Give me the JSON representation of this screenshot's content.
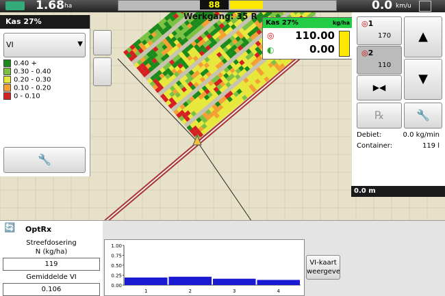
{
  "top_bar": {
    "area": "1.68",
    "area_unit": "ha",
    "center_value": "88",
    "speed": "0.0",
    "speed_unit": "km/u"
  },
  "map": {
    "pass_label": "Werkgang: 35 R",
    "distance": "0.0 m"
  },
  "left_panel": {
    "title": "Kas 27%",
    "dropdown": "VI",
    "legend": [
      "0.40 +",
      "0.30 - 0.40",
      "0.20 - 0.30",
      "0.10 - 0.20",
      "0 - 0.10"
    ]
  },
  "rate_overlay": {
    "title": "Kas 27%",
    "unit": "kg/ha",
    "target": "110.00",
    "actual": "0.00"
  },
  "right_panel": {
    "presets": [
      {
        "number": "1",
        "rate": "170"
      },
      {
        "number": "2",
        "rate": "110"
      }
    ],
    "flow_label": "Debiet:",
    "flow_value": "0.0 kg/min",
    "container_label": "Container:",
    "container_value": "119 l"
  },
  "optrx": {
    "title": "OptRx",
    "target_label_1": "Streefdosering",
    "target_label_2": "N (kg/ha)",
    "target_value": "119",
    "avg_label": "Gemiddelde VI",
    "avg_value": "0.106",
    "button_line_1": "VI-kaart",
    "button_line_2": "weergeven"
  },
  "vi_chart": {
    "type": "bar",
    "categories": [
      "1",
      "2",
      "3",
      "4"
    ],
    "values": [
      0.19,
      0.21,
      0.16,
      0.13
    ],
    "color": "#1a1ad0",
    "ylim": [
      0,
      1
    ],
    "yticks": [
      {
        "value": 0,
        "label": "0.00"
      },
      0.25,
      {
        "value": 0.5,
        "label": "0.50"
      },
      0.75,
      {
        "value": 1,
        "label": "1.00"
      }
    ]
  }
}
